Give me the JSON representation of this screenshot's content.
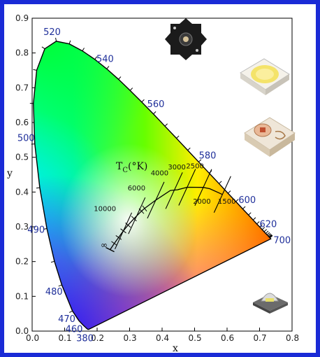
{
  "chart_data": {
    "type": "diagram",
    "xlabel": "x",
    "ylabel": "y",
    "xlim": [
      0.0,
      0.8
    ],
    "ylim": [
      0.0,
      0.9
    ],
    "x_ticks": [
      "0.0",
      "0.1",
      "0.2",
      "0.3",
      "0.4",
      "0.5",
      "0.6",
      "0.7",
      "0.8"
    ],
    "y_ticks": [
      "0.0",
      "0.1",
      "0.2",
      "0.3",
      "0.4",
      "0.5",
      "0.6",
      "0.7",
      "0.8",
      "0.9"
    ],
    "wavelength_labels": [
      {
        "text": "380",
        "x": 0.1741,
        "y": 0.005
      },
      {
        "text": "460",
        "x": 0.144,
        "y": 0.0297
      },
      {
        "text": "470",
        "x": 0.1241,
        "y": 0.0578
      },
      {
        "text": "480",
        "x": 0.0913,
        "y": 0.1327
      },
      {
        "text": "490",
        "x": 0.0454,
        "y": 0.295
      },
      {
        "text": "500",
        "x": 0.0082,
        "y": 0.5384
      },
      {
        "text": "520",
        "x": 0.0743,
        "y": 0.8338
      },
      {
        "text": "540",
        "x": 0.2296,
        "y": 0.7543
      },
      {
        "text": "560",
        "x": 0.3731,
        "y": 0.6245
      },
      {
        "text": "580",
        "x": 0.5125,
        "y": 0.4866
      },
      {
        "text": "600",
        "x": 0.627,
        "y": 0.3725
      },
      {
        "text": "620",
        "x": 0.6915,
        "y": 0.3083
      },
      {
        "text": "700",
        "x": 0.7347,
        "y": 0.2653
      }
    ],
    "locus": [
      [
        0.1741,
        0.005
      ],
      [
        0.1738,
        0.0049
      ],
      [
        0.1736,
        0.0049
      ],
      [
        0.1733,
        0.0048
      ],
      [
        0.1726,
        0.0048
      ],
      [
        0.1714,
        0.0051
      ],
      [
        0.1689,
        0.0069
      ],
      [
        0.1644,
        0.0109
      ],
      [
        0.1566,
        0.0177
      ],
      [
        0.144,
        0.0297
      ],
      [
        0.1241,
        0.0578
      ],
      [
        0.0913,
        0.1327
      ],
      [
        0.0687,
        0.2007
      ],
      [
        0.0454,
        0.295
      ],
      [
        0.0235,
        0.4127
      ],
      [
        0.0082,
        0.5384
      ],
      [
        0.0039,
        0.6548
      ],
      [
        0.0139,
        0.7502
      ],
      [
        0.0389,
        0.812
      ],
      [
        0.0743,
        0.8338
      ],
      [
        0.1142,
        0.8262
      ],
      [
        0.1547,
        0.8059
      ],
      [
        0.1929,
        0.7816
      ],
      [
        0.2296,
        0.7543
      ],
      [
        0.2658,
        0.7243
      ],
      [
        0.3016,
        0.6923
      ],
      [
        0.3373,
        0.6589
      ],
      [
        0.3731,
        0.6245
      ],
      [
        0.4087,
        0.5896
      ],
      [
        0.4441,
        0.5547
      ],
      [
        0.4788,
        0.5202
      ],
      [
        0.5125,
        0.4866
      ],
      [
        0.5448,
        0.4544
      ],
      [
        0.5752,
        0.4242
      ],
      [
        0.6029,
        0.3965
      ],
      [
        0.627,
        0.3725
      ],
      [
        0.6482,
        0.3514
      ],
      [
        0.6658,
        0.334
      ],
      [
        0.6801,
        0.3197
      ],
      [
        0.6915,
        0.3083
      ],
      [
        0.7006,
        0.2993
      ],
      [
        0.7079,
        0.292
      ],
      [
        0.714,
        0.2859
      ],
      [
        0.719,
        0.2809
      ],
      [
        0.723,
        0.277
      ],
      [
        0.726,
        0.274
      ],
      [
        0.7283,
        0.2717
      ],
      [
        0.73,
        0.27
      ],
      [
        0.7311,
        0.2689
      ],
      [
        0.732,
        0.268
      ],
      [
        0.7327,
        0.2673
      ],
      [
        0.7334,
        0.2666
      ],
      [
        0.734,
        0.266
      ],
      [
        0.7344,
        0.2656
      ],
      [
        0.7346,
        0.2654
      ],
      [
        0.7347,
        0.2653
      ]
    ],
    "planckian": {
      "title": "T",
      "title_sub": "C",
      "title_unit": "(°K)",
      "infinity_label": "∞",
      "points": [
        [
          0.2399,
          0.2343
        ],
        [
          0.2528,
          0.2522
        ],
        [
          0.2663,
          0.2691
        ],
        [
          0.2807,
          0.2883
        ],
        [
          0.2952,
          0.3048
        ],
        [
          0.3135,
          0.3236
        ],
        [
          0.3366,
          0.3451
        ],
        [
          0.3461,
          0.3529
        ],
        [
          0.3805,
          0.3768
        ],
        [
          0.4254,
          0.4044
        ],
        [
          0.4474,
          0.4066
        ],
        [
          0.4771,
          0.4137
        ],
        [
          0.5267,
          0.4133
        ],
        [
          0.5469,
          0.4095
        ],
        [
          0.5857,
          0.3931
        ]
      ],
      "isotherms": [
        {
          "label": "10000",
          "x": 0.2807,
          "y": 0.2883,
          "lx": 0.19,
          "ly": 0.345
        },
        {
          "label": "6000",
          "x": 0.3221,
          "y": 0.3318,
          "lx": 0.294,
          "ly": 0.405
        },
        {
          "label": "4000",
          "x": 0.3805,
          "y": 0.3768,
          "lx": 0.365,
          "ly": 0.448
        },
        {
          "label": "3000",
          "x": 0.4369,
          "y": 0.4041,
          "lx": 0.418,
          "ly": 0.465
        },
        {
          "label": "2500",
          "x": 0.4771,
          "y": 0.4137,
          "lx": 0.474,
          "ly": 0.468
        },
        {
          "label": "2000",
          "x": 0.5267,
          "y": 0.4133,
          "lx": 0.495,
          "ly": 0.366
        },
        {
          "label": "1500",
          "x": 0.5857,
          "y": 0.3931,
          "lx": 0.572,
          "ly": 0.366
        }
      ]
    }
  },
  "colors": {
    "border": "#1a2bd6",
    "wavelength_text": "#1f2f9a"
  },
  "icons": [
    "star-mount-led-icon",
    "white-smd-led-icon",
    "amber-smd-led-icon",
    "high-power-led-icon"
  ]
}
